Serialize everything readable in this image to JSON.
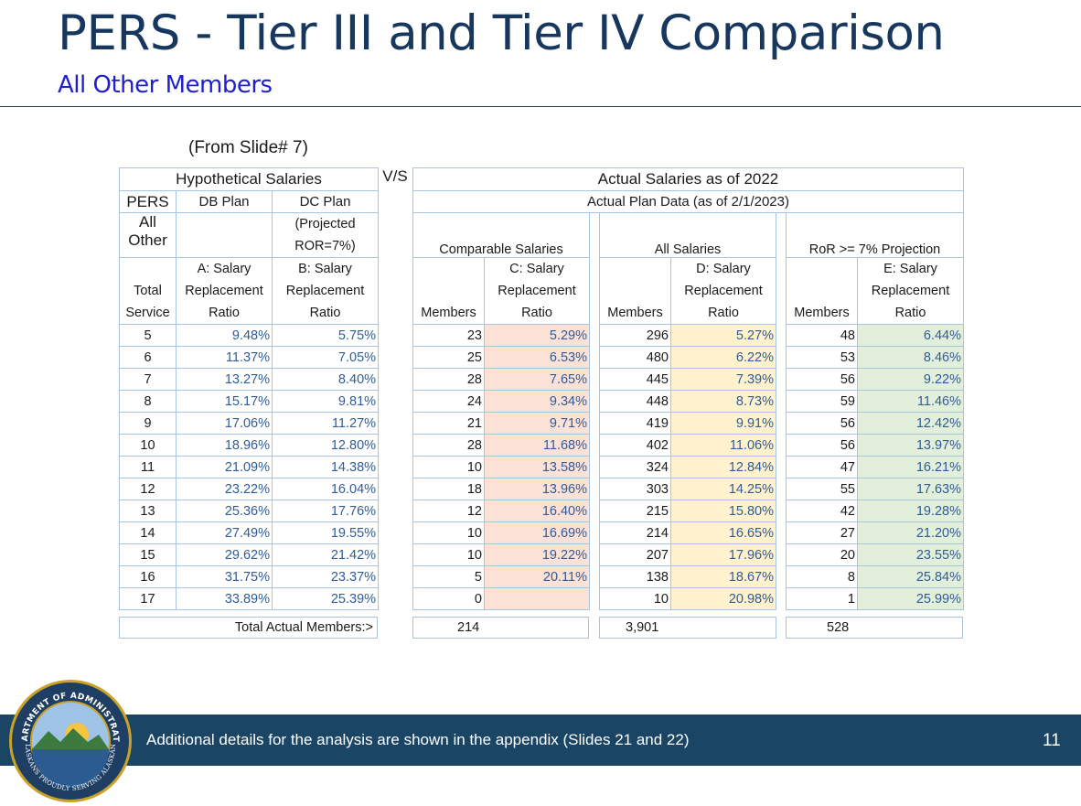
{
  "title": "PERS - Tier III and Tier IV Comparison",
  "subtitle": "All Other Members",
  "from_note": "(From Slide# 7)",
  "vs": "V/S",
  "hyp": {
    "header": "Hypothetical Salaries",
    "col_pers": [
      "PERS",
      "All",
      "Other"
    ],
    "col_db": "DB Plan",
    "col_dc": "DC Plan",
    "dc_note": [
      "(Projected",
      "ROR=7%)"
    ],
    "sub_total": [
      "",
      "Total",
      "Service"
    ],
    "sub_a": [
      "A: Salary",
      "Replacement",
      "Ratio"
    ],
    "sub_b": [
      "B: Salary",
      "Replacement",
      "Ratio"
    ]
  },
  "act": {
    "header": "Actual Salaries as of 2022",
    "subheader": "Actual Plan Data (as of 2/1/2023)",
    "group_c": "Comparable Salaries",
    "group_d": "All Salaries",
    "group_e": "RoR >= 7% Projection",
    "members_label": "Members",
    "sub_c": [
      "C: Salary",
      "Replacement",
      "Ratio"
    ],
    "sub_d": [
      "D: Salary",
      "Replacement",
      "Ratio"
    ],
    "sub_e": [
      "E: Salary",
      "Replacement",
      "Ratio"
    ]
  },
  "rows": [
    {
      "svc": "5",
      "a": "9.48%",
      "b": "5.75%",
      "cm": "23",
      "c": "5.29%",
      "dm": "296",
      "d": "5.27%",
      "em": "48",
      "e": "6.44%"
    },
    {
      "svc": "6",
      "a": "11.37%",
      "b": "7.05%",
      "cm": "25",
      "c": "6.53%",
      "dm": "480",
      "d": "6.22%",
      "em": "53",
      "e": "8.46%"
    },
    {
      "svc": "7",
      "a": "13.27%",
      "b": "8.40%",
      "cm": "28",
      "c": "7.65%",
      "dm": "445",
      "d": "7.39%",
      "em": "56",
      "e": "9.22%"
    },
    {
      "svc": "8",
      "a": "15.17%",
      "b": "9.81%",
      "cm": "24",
      "c": "9.34%",
      "dm": "448",
      "d": "8.73%",
      "em": "59",
      "e": "11.46%"
    },
    {
      "svc": "9",
      "a": "17.06%",
      "b": "11.27%",
      "cm": "21",
      "c": "9.71%",
      "dm": "419",
      "d": "9.91%",
      "em": "56",
      "e": "12.42%"
    },
    {
      "svc": "10",
      "a": "18.96%",
      "b": "12.80%",
      "cm": "28",
      "c": "11.68%",
      "dm": "402",
      "d": "11.06%",
      "em": "56",
      "e": "13.97%"
    },
    {
      "svc": "11",
      "a": "21.09%",
      "b": "14.38%",
      "cm": "10",
      "c": "13.58%",
      "dm": "324",
      "d": "12.84%",
      "em": "47",
      "e": "16.21%"
    },
    {
      "svc": "12",
      "a": "23.22%",
      "b": "16.04%",
      "cm": "18",
      "c": "13.96%",
      "dm": "303",
      "d": "14.25%",
      "em": "55",
      "e": "17.63%"
    },
    {
      "svc": "13",
      "a": "25.36%",
      "b": "17.76%",
      "cm": "12",
      "c": "16.40%",
      "dm": "215",
      "d": "15.80%",
      "em": "42",
      "e": "19.28%"
    },
    {
      "svc": "14",
      "a": "27.49%",
      "b": "19.55%",
      "cm": "10",
      "c": "16.69%",
      "dm": "214",
      "d": "16.65%",
      "em": "27",
      "e": "21.20%"
    },
    {
      "svc": "15",
      "a": "29.62%",
      "b": "21.42%",
      "cm": "10",
      "c": "19.22%",
      "dm": "207",
      "d": "17.96%",
      "em": "20",
      "e": "23.55%"
    },
    {
      "svc": "16",
      "a": "31.75%",
      "b": "23.37%",
      "cm": "5",
      "c": "20.11%",
      "dm": "138",
      "d": "18.67%",
      "em": "8",
      "e": "25.84%"
    },
    {
      "svc": "17",
      "a": "33.89%",
      "b": "25.39%",
      "cm": "0",
      "c": "",
      "dm": "10",
      "d": "20.98%",
      "em": "1",
      "e": "25.99%"
    }
  ],
  "totals": {
    "label": "Total Actual Members:>",
    "c": "214",
    "d": "3,901",
    "e": "528"
  },
  "footer": {
    "text": "Additional details for the analysis are shown in the appendix (Slides 21 and 22)",
    "slide_number": "11"
  },
  "seal": {
    "top_text": "DEPARTMENT OF ADMINISTRATION",
    "bottom_text": "ALASKANS PROUDLY SERVING ALASKANS",
    "colors": {
      "ring": "#1f3e64",
      "gold": "#c9a227",
      "sky": "#f4c542",
      "water": "#2b5b8f",
      "mountain": "#3d7a3d"
    }
  }
}
